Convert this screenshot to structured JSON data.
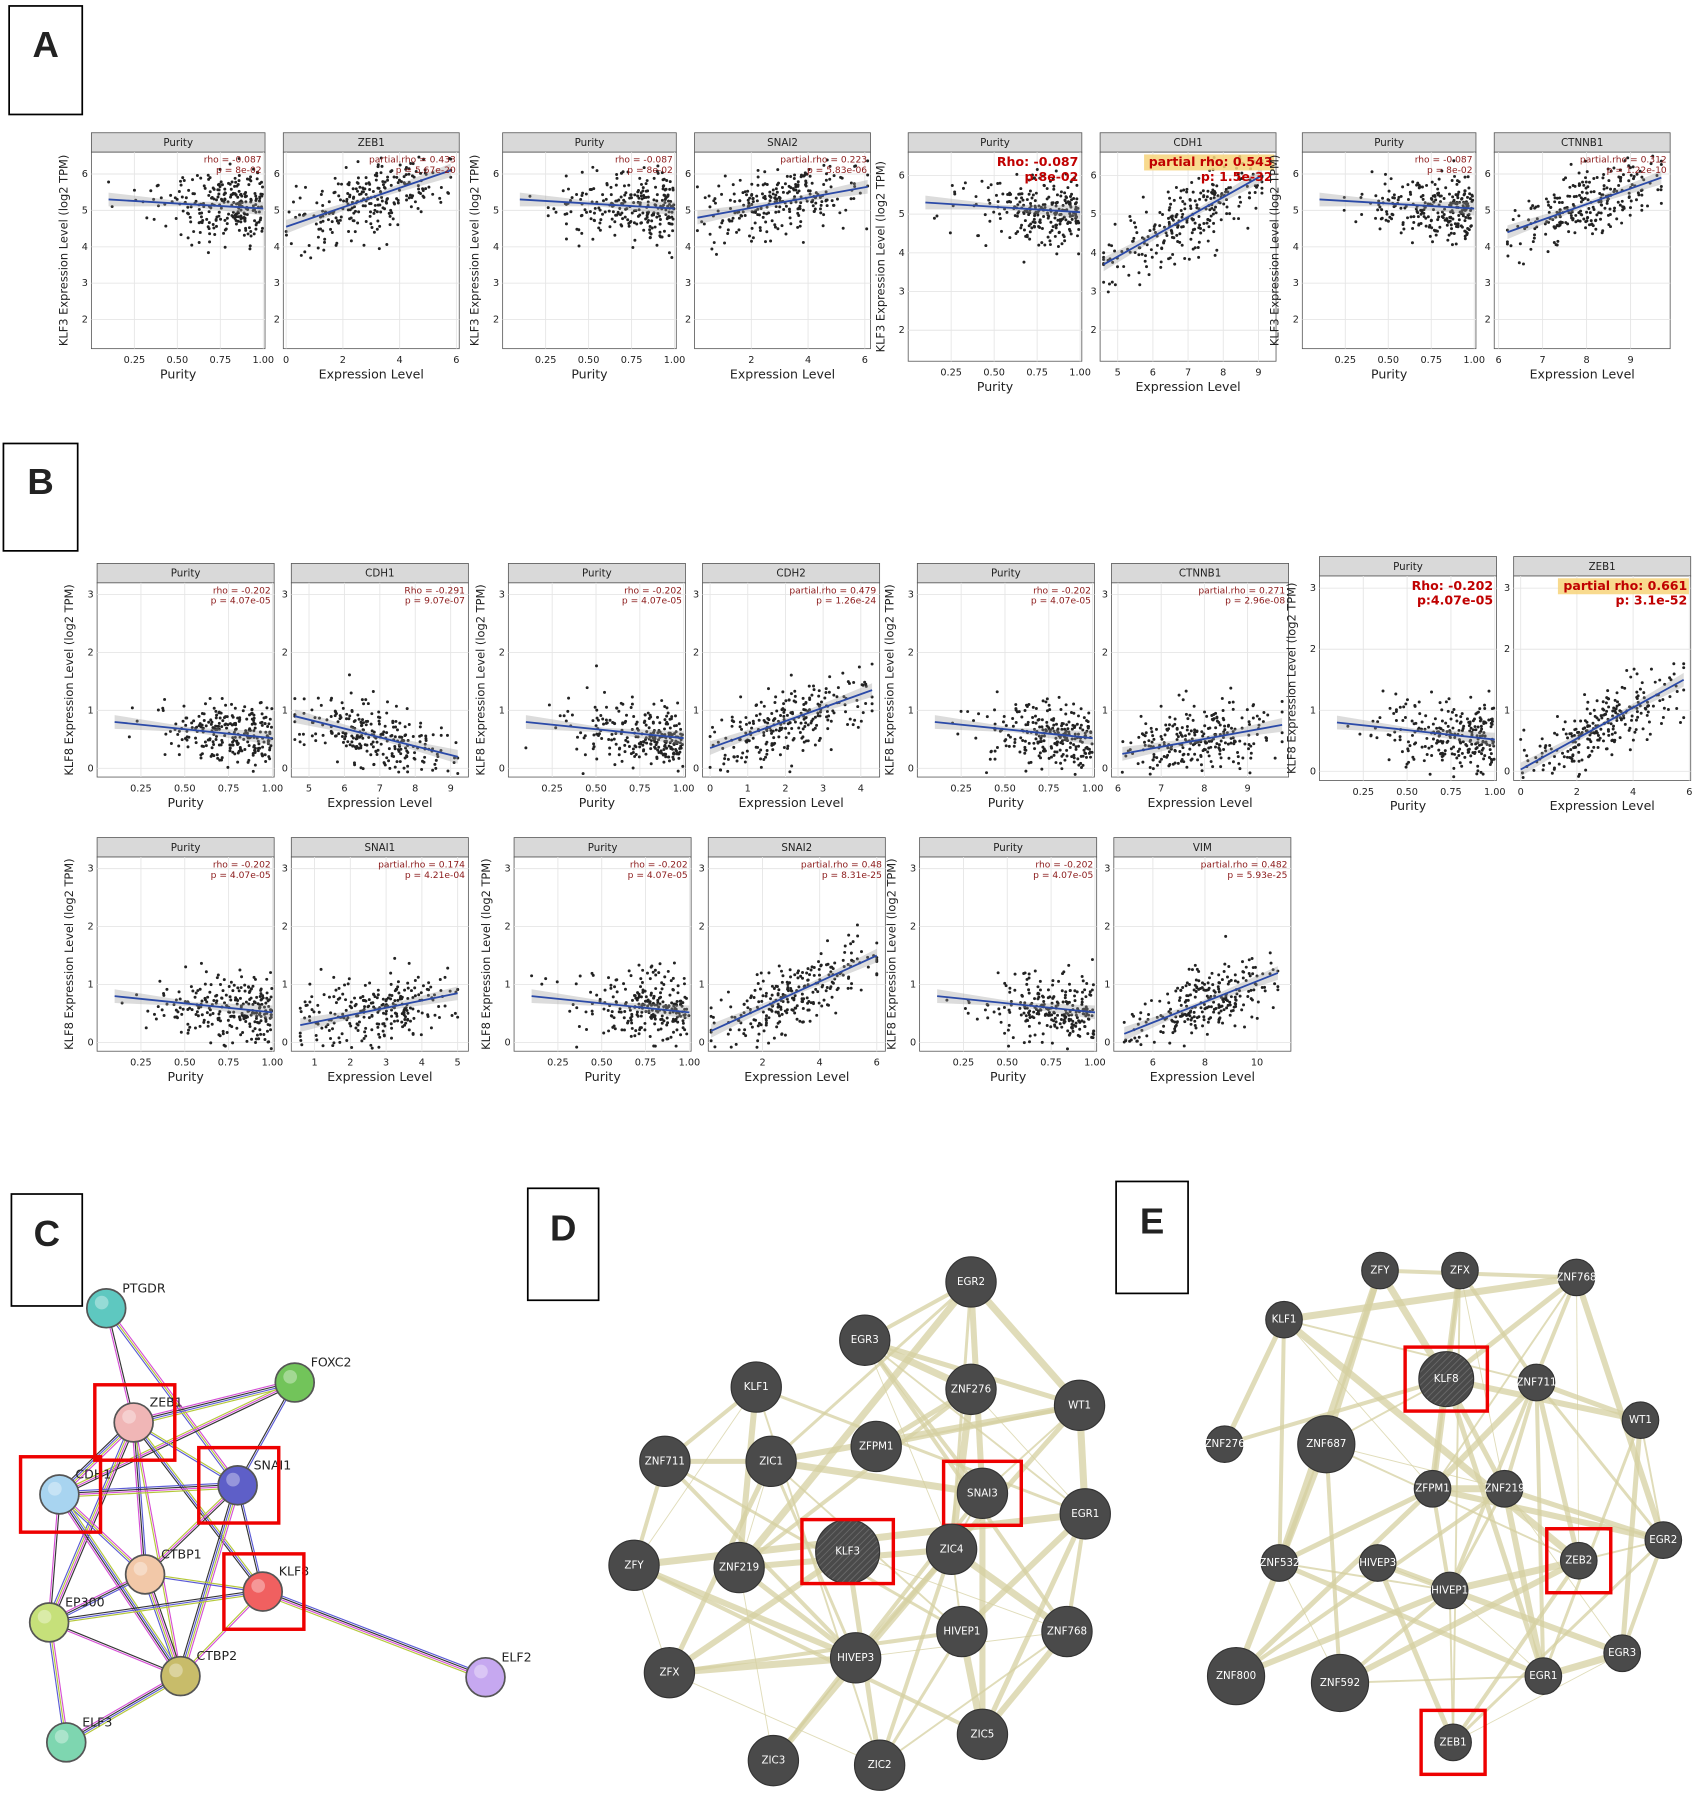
{
  "panel_a": {
    "label": "A",
    "y_label": "KLF3 Expression Level (log2 TPM)",
    "ylim": [
      1.2,
      6.6
    ],
    "yticks": [
      2,
      3,
      4,
      5,
      6
    ],
    "pairs": [
      {
        "left": {
          "strip": "Purity",
          "annotation": [
            "rho = -0.087",
            "p = 8e-02"
          ],
          "x_label": "Purity",
          "xlim": [
            0,
            1.01
          ],
          "xticks": [
            0.25,
            {
              "value": 0.5,
              "label": "0.50"
            },
            0.75,
            {
              "value": 1,
              "label": "1.00"
            }
          ],
          "fit": [
            [
              0.1,
              5.3
            ],
            [
              1.0,
              5.05
            ]
          ]
        },
        "right": {
          "strip": "ZEB1",
          "annotation": [
            "partial.rho = 0.433",
            "p = 5.67e-20"
          ],
          "x_label": "Expression Level",
          "xlim": [
            -0.1,
            6.1
          ],
          "xticks": [
            0,
            2,
            4,
            6
          ],
          "fit": [
            [
              0,
              4.55
            ],
            [
              5.8,
              6.1
            ]
          ]
        }
      },
      {
        "left": {
          "strip": "Purity",
          "annotation": [
            "rho = -0.087",
            "p = 8e-02"
          ],
          "x_label": "Purity",
          "xlim": [
            0,
            1.01
          ],
          "xticks": [
            0.25,
            {
              "value": 0.5,
              "label": "0.50"
            },
            0.75,
            {
              "value": 1,
              "label": "1.00"
            }
          ],
          "fit": [
            [
              0.1,
              5.3
            ],
            [
              1.0,
              5.05
            ]
          ]
        },
        "right": {
          "strip": "SNAI2",
          "annotation": [
            "partial.rho = 0.223",
            "p = 5.83e-06"
          ],
          "x_label": "Expression Level",
          "xlim": [
            0,
            6.2
          ],
          "xticks": [
            2,
            4,
            6
          ],
          "fit": [
            [
              0.1,
              4.8
            ],
            [
              6.1,
              5.65
            ]
          ]
        }
      },
      {
        "left": {
          "strip": "Purity",
          "annotation": [
            "Rho: -0.087",
            "p:8e-02"
          ],
          "emphasis": true,
          "x_label": "Purity",
          "xlim": [
            0,
            1.01
          ],
          "xticks": [
            0.25,
            {
              "value": 0.5,
              "label": "0.50"
            },
            0.75,
            {
              "value": 1,
              "label": "1.00"
            }
          ],
          "fit": [
            [
              0.1,
              5.3
            ],
            [
              1.0,
              5.05
            ]
          ]
        },
        "right": {
          "strip": "CDH1",
          "annotation": [
            "partial rho: 0.543",
            "p: 1.5e-32"
          ],
          "emphasis": true,
          "highlight": true,
          "x_label": "Expression Level",
          "xlim": [
            4.5,
            9.5
          ],
          "xticks": [
            5,
            6,
            7,
            8,
            9
          ],
          "fit": [
            [
              4.6,
              3.7
            ],
            [
              9.1,
              6.0
            ]
          ]
        }
      },
      {
        "left": {
          "strip": "Purity",
          "annotation": [
            "rho = -0.087",
            "p = 8e-02"
          ],
          "x_label": "Purity",
          "xlim": [
            0,
            1.01
          ],
          "xticks": [
            0.25,
            {
              "value": 0.5,
              "label": "0.50"
            },
            0.75,
            {
              "value": 1,
              "label": "1.00"
            }
          ],
          "fit": [
            [
              0.1,
              5.3
            ],
            [
              1.0,
              5.05
            ]
          ]
        },
        "right": {
          "strip": "CTNNB1",
          "annotation": [
            "partial.rho = 0.312",
            "p = 1.22e-10"
          ],
          "x_label": "Expression Level",
          "xlim": [
            5.9,
            9.9
          ],
          "xticks": [
            6,
            7,
            8,
            9
          ],
          "fit": [
            [
              6.2,
              4.4
            ],
            [
              9.7,
              5.9
            ]
          ]
        }
      }
    ]
  },
  "panel_b": {
    "label": "B",
    "y_label": "KLF8 Expression Level (log2 TPM)",
    "ylim": [
      -0.15,
      3.2
    ],
    "yticks": [
      0,
      1,
      2,
      3
    ],
    "pairs": [
      {
        "left": {
          "strip": "Purity",
          "annotation": [
            "rho = -0.202",
            "p = 4.07e-05"
          ],
          "x_label": "Purity",
          "xlim": [
            0,
            1.01
          ],
          "xticks": [
            0.25,
            {
              "value": 0.5,
              "label": "0.50"
            },
            0.75,
            {
              "value": 1,
              "label": "1.00"
            }
          ],
          "fit": [
            [
              0.1,
              0.8
            ],
            [
              1.0,
              0.52
            ]
          ]
        },
        "right": {
          "strip": "CDH1",
          "annotation": [
            "Rho = -0.291",
            "p = 9.07e-07"
          ],
          "x_label": "Expression Level",
          "xlim": [
            4.5,
            9.5
          ],
          "xticks": [
            5,
            6,
            7,
            8,
            9
          ],
          "fit": [
            [
              4.6,
              0.9
            ],
            [
              9.2,
              0.2
            ]
          ]
        }
      },
      {
        "left": {
          "strip": "Purity",
          "annotation": [
            "rho = -0.202",
            "p = 4.07e-05"
          ],
          "x_label": "Purity",
          "xlim": [
            0,
            1.01
          ],
          "xticks": [
            0.25,
            {
              "value": 0.5,
              "label": "0.50"
            },
            0.75,
            {
              "value": 1,
              "label": "1.00"
            }
          ],
          "fit": [
            [
              0.1,
              0.8
            ],
            [
              1.0,
              0.52
            ]
          ]
        },
        "right": {
          "strip": "CDH2",
          "annotation": [
            "partial.rho = 0.479",
            "p = 1.26e-24"
          ],
          "x_label": "Expression Level",
          "xlim": [
            -0.2,
            4.5
          ],
          "xticks": [
            0,
            1,
            2,
            3,
            4
          ],
          "fit": [
            [
              0,
              0.35
            ],
            [
              4.3,
              1.35
            ]
          ]
        }
      },
      {
        "left": {
          "strip": "Purity",
          "annotation": [
            "rho = -0.202",
            "p = 4.07e-05"
          ],
          "x_label": "Purity",
          "xlim": [
            0,
            1.01
          ],
          "xticks": [
            0.25,
            {
              "value": 0.5,
              "label": "0.50"
            },
            0.75,
            {
              "value": 1,
              "label": "1.00"
            }
          ],
          "fit": [
            [
              0.1,
              0.8
            ],
            [
              1.0,
              0.52
            ]
          ]
        },
        "right": {
          "strip": "CTNNB1",
          "annotation": [
            "partial.rho = 0.271",
            "p = 2.96e-08"
          ],
          "x_label": "Expression Level",
          "xlim": [
            5.85,
            9.95
          ],
          "xticks": [
            6,
            7,
            8,
            9
          ],
          "fit": [
            [
              6.1,
              0.25
            ],
            [
              9.8,
              0.75
            ]
          ]
        }
      },
      {
        "left": {
          "strip": "Purity",
          "annotation": [
            "Rho: -0.202",
            "p:4.07e-05"
          ],
          "emphasis": true,
          "x_label": "Purity",
          "xlim": [
            0,
            1.01
          ],
          "xticks": [
            0.25,
            {
              "value": 0.5,
              "label": "0.50"
            },
            0.75,
            {
              "value": 1,
              "label": "1.00"
            }
          ],
          "fit": [
            [
              0.1,
              0.8
            ],
            [
              1.0,
              0.52
            ]
          ]
        },
        "right": {
          "strip": "ZEB1",
          "annotation": [
            "partial rho: 0.661",
            "p: 3.1e-52"
          ],
          "emphasis": true,
          "highlight": true,
          "x_label": "Expression Level",
          "xlim": [
            -0.25,
            6.05
          ],
          "xticks": [
            0,
            2,
            4,
            6
          ],
          "fit": [
            [
              0,
              0.03
            ],
            [
              5.8,
              1.5
            ]
          ]
        }
      },
      {
        "left": {
          "strip": "Purity",
          "annotation": [
            "rho = -0.202",
            "p = 4.07e-05"
          ],
          "x_label": "Purity",
          "xlim": [
            0,
            1.01
          ],
          "xticks": [
            0.25,
            {
              "value": 0.5,
              "label": "0.50"
            },
            0.75,
            {
              "value": 1,
              "label": "1.00"
            }
          ],
          "fit": [
            [
              0.1,
              0.8
            ],
            [
              1.0,
              0.52
            ]
          ]
        },
        "right": {
          "strip": "SNAI1",
          "annotation": [
            "partial.rho = 0.174",
            "p = 4.21e-04"
          ],
          "x_label": "Expression Level",
          "xlim": [
            0.35,
            5.3
          ],
          "xticks": [
            1,
            2,
            3,
            4,
            5
          ],
          "fit": [
            [
              0.6,
              0.3
            ],
            [
              5,
              0.85
            ]
          ]
        }
      },
      {
        "left": {
          "strip": "Purity",
          "annotation": [
            "rho = -0.202",
            "p = 4.07e-05"
          ],
          "x_label": "Purity",
          "xlim": [
            0,
            1.01
          ],
          "xticks": [
            0.25,
            {
              "value": 0.5,
              "label": "0.50"
            },
            0.75,
            {
              "value": 1,
              "label": "1.00"
            }
          ],
          "fit": [
            [
              0.1,
              0.8
            ],
            [
              1.0,
              0.52
            ]
          ]
        },
        "right": {
          "strip": "SNAI2",
          "annotation": [
            "partial.rho = 0.48",
            "p = 8.31e-25"
          ],
          "x_label": "Expression Level",
          "xlim": [
            0.1,
            6.3
          ],
          "xticks": [
            2,
            4,
            6
          ],
          "fit": [
            [
              0.2,
              0.2
            ],
            [
              6,
              1.5
            ]
          ]
        }
      },
      {
        "left": {
          "strip": "Purity",
          "annotation": [
            "rho = -0.202",
            "p = 4.07e-05"
          ],
          "x_label": "Purity",
          "xlim": [
            0,
            1.01
          ],
          "xticks": [
            0.25,
            {
              "value": 0.5,
              "label": "0.50"
            },
            0.75,
            {
              "value": 1,
              "label": "1.00"
            }
          ],
          "fit": [
            [
              0.1,
              0.8
            ],
            [
              1.0,
              0.52
            ]
          ]
        },
        "right": {
          "strip": "VIM",
          "annotation": [
            "partial.rho = 0.482",
            "p = 5.93e-25"
          ],
          "x_label": "Expression Level",
          "xlim": [
            4.5,
            11.3
          ],
          "xticks": [
            6,
            8,
            10
          ],
          "fit": [
            [
              4.9,
              0.15
            ],
            [
              10.8,
              1.2
            ]
          ]
        }
      }
    ]
  },
  "network_c": {
    "label": "C",
    "nodes": [
      {
        "label": "PTGDR",
        "color": "#5ec8c0",
        "boxed": false
      },
      {
        "label": "FOXC2",
        "color": "#72c45a",
        "boxed": false
      },
      {
        "label": "ZEB1",
        "color": "#f0b6b6",
        "boxed": true
      },
      {
        "label": "CDH1",
        "color": "#a8d4f0",
        "boxed": true
      },
      {
        "label": "SNAI1",
        "color": "#5e5fc8",
        "boxed": true
      },
      {
        "label": "CTBP1",
        "color": "#f2c8a8",
        "boxed": false
      },
      {
        "label": "KLF8",
        "color": "#f06060",
        "boxed": true
      },
      {
        "label": "EP300",
        "color": "#c6e07a",
        "boxed": false
      },
      {
        "label": "CTBP2",
        "color": "#c8bc6a",
        "boxed": false
      },
      {
        "label": "ELF3",
        "color": "#7ed6b0",
        "boxed": false
      },
      {
        "label": "ELF2",
        "color": "#c6a8f0",
        "boxed": false
      }
    ]
  },
  "network_d": {
    "label": "D",
    "nodes": [
      {
        "label": "EGR2"
      },
      {
        "label": "KLF1"
      },
      {
        "label": "EGR3"
      },
      {
        "label": "ZNF276"
      },
      {
        "label": "WT1"
      },
      {
        "label": "ZNF711"
      },
      {
        "label": "ZIC1"
      },
      {
        "label": "ZFPM1"
      },
      {
        "label": "SNAI3",
        "boxed": true
      },
      {
        "label": "EGR1"
      },
      {
        "label": "ZFY"
      },
      {
        "label": "ZNF219"
      },
      {
        "label": "KLF3",
        "boxed": true,
        "query": true
      },
      {
        "label": "ZIC4"
      },
      {
        "label": "HIVEP1"
      },
      {
        "label": "ZNF768"
      },
      {
        "label": "ZFX"
      },
      {
        "label": "HIVEP3"
      },
      {
        "label": "ZIC5"
      },
      {
        "label": "ZIC3"
      },
      {
        "label": "ZIC2"
      }
    ]
  },
  "network_e": {
    "label": "E",
    "nodes": [
      {
        "label": "ZFY"
      },
      {
        "label": "ZFX"
      },
      {
        "label": "ZNF768"
      },
      {
        "label": "KLF1"
      },
      {
        "label": "KLF8",
        "boxed": true,
        "query": true
      },
      {
        "label": "ZNF711"
      },
      {
        "label": "WT1"
      },
      {
        "label": "ZNF276"
      },
      {
        "label": "ZNF687"
      },
      {
        "label": "ZFPM1"
      },
      {
        "label": "ZNF219"
      },
      {
        "label": "ZNF532"
      },
      {
        "label": "HIVEP3"
      },
      {
        "label": "ZEB2",
        "boxed": true
      },
      {
        "label": "EGR2"
      },
      {
        "label": "HIVEP1"
      },
      {
        "label": "EGR3"
      },
      {
        "label": "EGR1"
      },
      {
        "label": "ZNF800"
      },
      {
        "label": "ZNF592"
      },
      {
        "label": "ZEB1",
        "boxed": true
      }
    ]
  }
}
